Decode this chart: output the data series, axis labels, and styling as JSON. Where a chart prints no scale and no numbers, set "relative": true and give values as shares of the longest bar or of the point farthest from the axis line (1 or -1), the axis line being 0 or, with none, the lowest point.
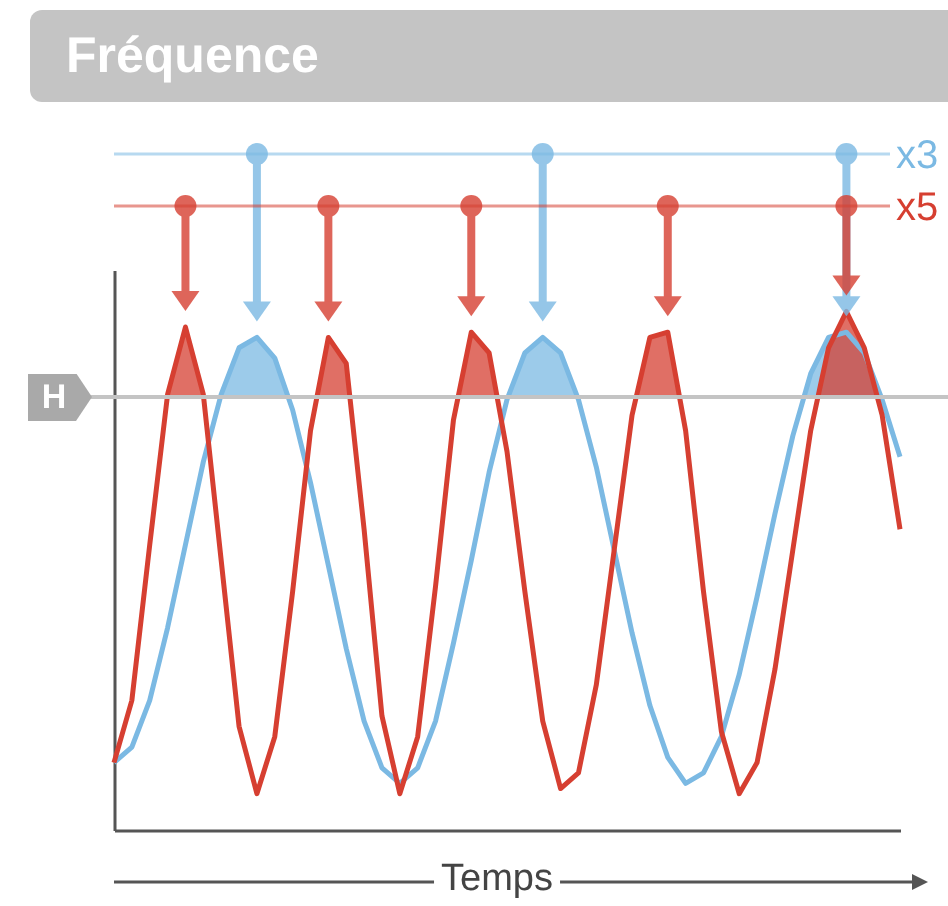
{
  "chart_data": {
    "type": "line",
    "title": "Fréquence",
    "xlabel": "Temps",
    "relative": true,
    "grid": false,
    "legend": "top right",
    "categories": [
      null,
      null,
      null,
      null,
      null,
      null,
      null,
      null,
      null,
      null,
      null,
      null,
      null,
      null,
      null,
      null,
      null,
      null,
      null,
      null,
      null,
      null,
      null,
      null,
      null,
      null,
      null,
      null,
      null,
      null,
      null,
      null,
      null,
      null,
      null,
      null,
      null,
      null,
      null,
      null,
      null,
      null,
      null,
      null,
      null
    ],
    "series": [
      {
        "name": "x3",
        "color": "#7bb9e3",
        "values": [
          0.13,
          0.16,
          0.25,
          0.39,
          0.55,
          0.71,
          0.84,
          0.93,
          0.95,
          0.91,
          0.81,
          0.67,
          0.51,
          0.35,
          0.21,
          0.12,
          0.09,
          0.12,
          0.21,
          0.36,
          0.52,
          0.69,
          0.83,
          0.92,
          0.95,
          0.92,
          0.83,
          0.7,
          0.54,
          0.38,
          0.24,
          0.14,
          0.09,
          0.11,
          0.18,
          0.3,
          0.45,
          0.61,
          0.76,
          0.88,
          0.95,
          0.96,
          0.92,
          0.83,
          0.72
        ]
      },
      {
        "name": "x5",
        "color": "#d63f31",
        "values": [
          0.13,
          0.25,
          0.55,
          0.84,
          0.97,
          0.84,
          0.52,
          0.2,
          0.07,
          0.18,
          0.46,
          0.77,
          0.95,
          0.9,
          0.58,
          0.22,
          0.07,
          0.18,
          0.47,
          0.79,
          0.96,
          0.92,
          0.73,
          0.46,
          0.21,
          0.08,
          0.11,
          0.28,
          0.54,
          0.8,
          0.95,
          0.96,
          0.77,
          0.46,
          0.19,
          0.07,
          0.13,
          0.31,
          0.54,
          0.77,
          0.93,
          1,
          0.93,
          0.8,
          0.58
        ]
      }
    ],
    "ref_lines": [
      {
        "axis": "y",
        "value": 0.835,
        "label": "H",
        "color": "#c4c4c4"
      }
    ]
  }
}
